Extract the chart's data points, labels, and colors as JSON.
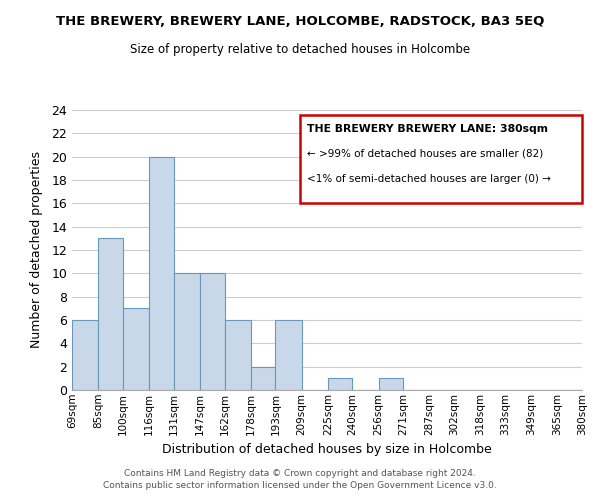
{
  "title": "THE BREWERY, BREWERY LANE, HOLCOMBE, RADSTOCK, BA3 5EQ",
  "subtitle": "Size of property relative to detached houses in Holcombe",
  "xlabel": "Distribution of detached houses by size in Holcombe",
  "ylabel": "Number of detached properties",
  "bin_edges": [
    69,
    85,
    100,
    116,
    131,
    147,
    162,
    178,
    193,
    209,
    225,
    240,
    256,
    271,
    287,
    302,
    318,
    333,
    349,
    365,
    380
  ],
  "bar_heights": [
    6,
    13,
    7,
    20,
    10,
    10,
    6,
    2,
    6,
    0,
    1,
    0,
    1,
    0,
    0,
    0,
    0,
    0,
    0,
    0
  ],
  "bar_color": "#c8d8e8",
  "bar_edgecolor": "#6699bb",
  "grid_color": "#cccccc",
  "ylim": [
    0,
    24
  ],
  "yticks": [
    0,
    2,
    4,
    6,
    8,
    10,
    12,
    14,
    16,
    18,
    20,
    22,
    24
  ],
  "xtick_labels": [
    "69sqm",
    "85sqm",
    "100sqm",
    "116sqm",
    "131sqm",
    "147sqm",
    "162sqm",
    "178sqm",
    "193sqm",
    "209sqm",
    "225sqm",
    "240sqm",
    "256sqm",
    "271sqm",
    "287sqm",
    "302sqm",
    "318sqm",
    "333sqm",
    "349sqm",
    "365sqm",
    "380sqm"
  ],
  "legend_title": "THE BREWERY BREWERY LANE: 380sqm",
  "legend_line1": "← >99% of detached houses are smaller (82)",
  "legend_line2": "<1% of semi-detached houses are larger (0) →",
  "legend_box_color": "#cc0000",
  "footer_line1": "Contains HM Land Registry data © Crown copyright and database right 2024.",
  "footer_line2": "Contains public sector information licensed under the Open Government Licence v3.0.",
  "background_color": "#ffffff"
}
